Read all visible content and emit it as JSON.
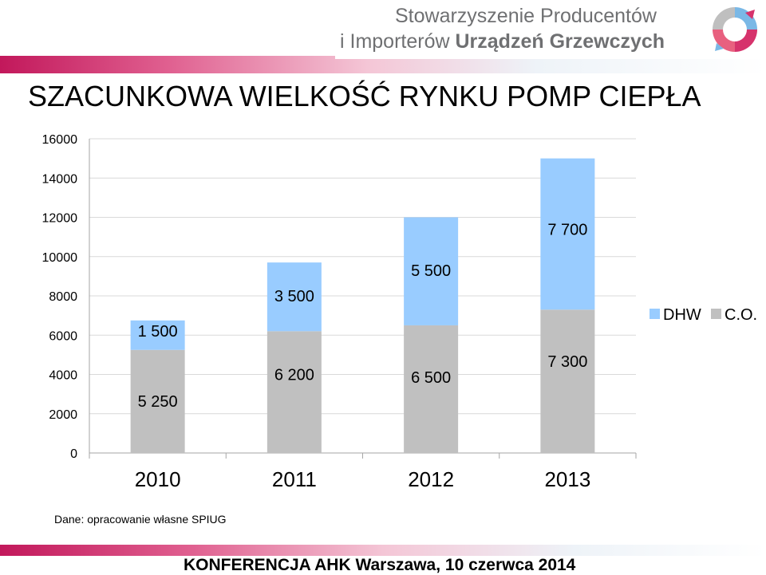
{
  "header": {
    "org_line1": "Stowarzyszenie Producentów",
    "org_line2_prefix": "i Importerów ",
    "org_line2_bold": "Urządzeń Grzewczych"
  },
  "colors": {
    "dhw": "#99ccff",
    "co": "#c0c0c0",
    "grid": "#d9d9d9",
    "axis": "#a6a6a6",
    "accent": "#c2185b"
  },
  "chart_data": {
    "type": "bar",
    "stacked": true,
    "title": "SZACUNKOWA WIELKOŚĆ RYNKU POMP CIEPŁA",
    "categories": [
      "2010",
      "2011",
      "2012",
      "2013"
    ],
    "series": [
      {
        "name": "C.O.",
        "color": "#c0c0c0",
        "values": [
          5250,
          6200,
          6500,
          7300
        ],
        "labels": [
          "5 250",
          "6 200",
          "6 500",
          "7 300"
        ]
      },
      {
        "name": "DHW",
        "color": "#99ccff",
        "values": [
          1500,
          3500,
          5500,
          7700
        ],
        "labels": [
          "1 500",
          "3 500",
          "5 500",
          "7 700"
        ]
      }
    ],
    "yticks": [
      "0",
      "2000",
      "4000",
      "6000",
      "8000",
      "10000",
      "12000",
      "14000",
      "16000"
    ],
    "ylim": [
      0,
      16000
    ],
    "grid": true,
    "legend": {
      "position": "right",
      "entries": [
        "DHW",
        "C.O."
      ]
    }
  },
  "source_note": "Dane: opracowanie własne SPIUG",
  "footer": "KONFERENCJA  AHK Warszawa,  10 czerwca 2014"
}
